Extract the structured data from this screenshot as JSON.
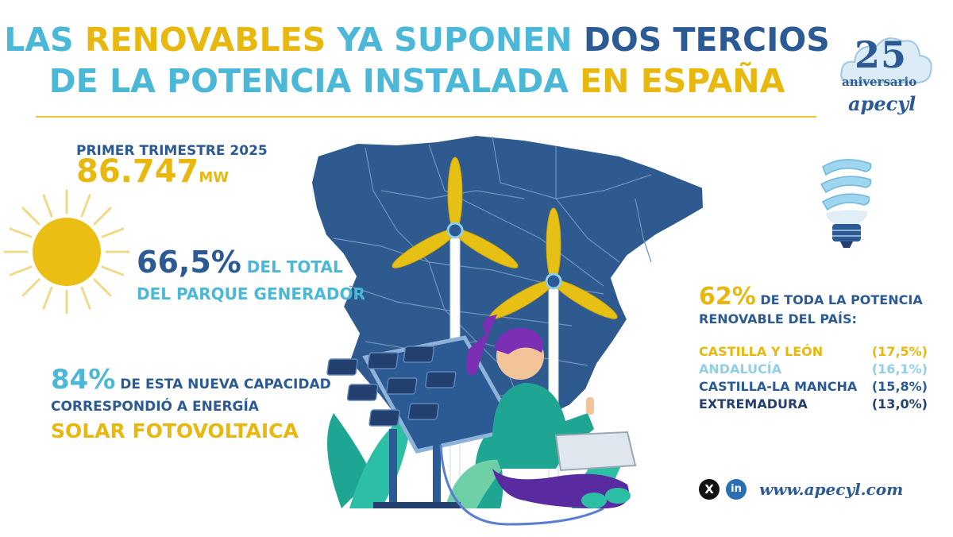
{
  "headline": {
    "line1_a": "LAS ",
    "line1_b": "RENOVABLES",
    "line1_c": " YA SUPONEN ",
    "line1_d": "DOS TERCIOS",
    "line2_a": "DE LA POTENCIA INSTALADA ",
    "line2_b": "EN ESPAÑA"
  },
  "logo": {
    "number": "25",
    "anniversary": "aniversario",
    "brand": "apecyl"
  },
  "stats": {
    "period": "PRIMER TRIMESTRE 2025",
    "capacity_value": "86.747",
    "capacity_unit": "MW",
    "share_value": "66,5%",
    "share_text_1": " DEL TOTAL",
    "share_text_2": "DEL PARQUE GENERADOR",
    "solar_value": "84%",
    "solar_text_1": " DE ESTA NUEVA CAPACIDAD",
    "solar_text_2": "CORRESPONDIÓ A ENERGÍA",
    "solar_text_3": "SOLAR FOTOVOLTAICA"
  },
  "regions": {
    "intro_value": "62%",
    "intro_text_1": " DE TODA LA POTENCIA",
    "intro_text_2": "RENOVABLE DEL PAÍS:",
    "items": [
      {
        "name": "CASTILLA Y LEÓN",
        "pct": "(17,5%)",
        "color": "#e8b80f"
      },
      {
        "name": "ANDALUCÍA",
        "pct": "(16,1%)",
        "color": "#8fd0e8"
      },
      {
        "name": "CASTILLA-LA MANCHA",
        "pct": "(15,8%)",
        "color": "#2b5a94"
      },
      {
        "name": "EXTREMADURA",
        "pct": "(13,0%)",
        "color": "#23406f"
      }
    ]
  },
  "footer": {
    "x_icon": "X",
    "linkedin_icon": "in",
    "website": "www.apecyl.com"
  },
  "colors": {
    "yellow": "#e8b80f",
    "light_blue": "#4bb8d8",
    "navy": "#2b5a94",
    "map_blue": "#2f5a8f"
  },
  "icons": [
    "sun-icon",
    "bulb-icon",
    "wind-turbine-icon",
    "solar-panel-icon",
    "x-icon",
    "linkedin-icon"
  ]
}
